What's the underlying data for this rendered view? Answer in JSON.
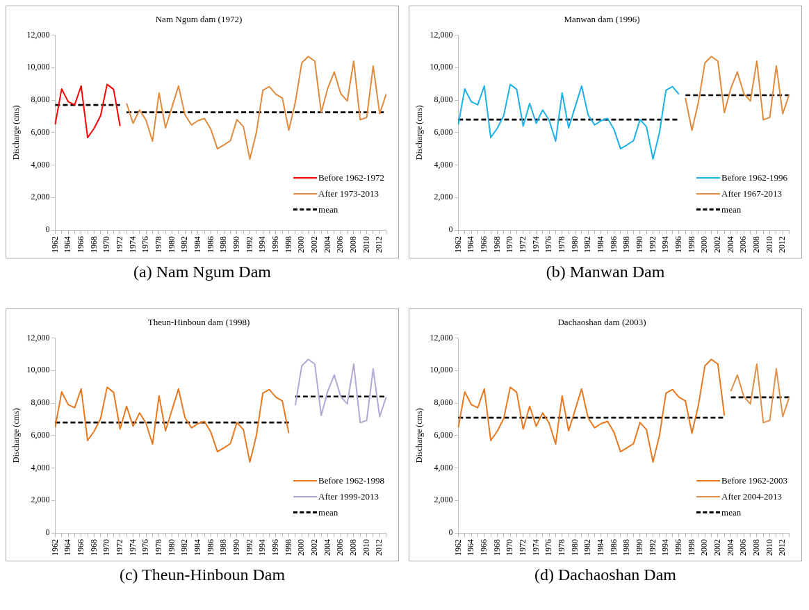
{
  "chart_data": [
    {
      "type": "line",
      "title": "Nam Ngum dam (1972)",
      "ylabel": "Discharge (cms)",
      "annotations": [
        "(a) Nam Ngum Dam"
      ],
      "legend": "bottom right",
      "grid": false,
      "marker": "none",
      "categories": [
        "1962",
        null,
        "1964",
        null,
        "1966",
        null,
        "1968",
        null,
        "1970",
        null,
        "1972",
        null,
        "1974",
        null,
        "1976",
        null,
        "1978",
        null,
        "1980",
        null,
        "1982",
        null,
        "1984",
        null,
        "1986",
        null,
        "1988",
        null,
        "1990",
        null,
        "1992",
        null,
        "1994",
        null,
        "1996",
        null,
        "1998",
        null,
        "2000",
        null,
        "2002",
        null,
        "2004",
        null,
        "2006",
        null,
        "2008",
        null,
        "2010",
        null,
        "2012",
        null
      ],
      "ylim": [
        0,
        12000
      ],
      "yticks": [
        {
          "value": 0,
          "label": "0"
        },
        {
          "value": 2000,
          "label": "2,000"
        },
        {
          "value": 4000,
          "label": "4,000"
        },
        {
          "value": 6000,
          "label": "6,000"
        },
        {
          "value": 8000,
          "label": "8,000"
        },
        {
          "value": 10000,
          "label": "10,000"
        },
        {
          "value": 12000,
          "label": "12,000"
        }
      ],
      "series": [
        {
          "name": "Before 1962-1972",
          "color": "#ff0000",
          "values": [
            6500,
            8690,
            7900,
            7710,
            8870,
            5690,
            6260,
            7040,
            8970,
            8660,
            6400,
            null,
            null,
            null,
            null,
            null,
            null,
            null,
            null,
            null,
            null,
            null,
            null,
            null,
            null,
            null,
            null,
            null,
            null,
            null,
            null,
            null,
            null,
            null,
            null,
            null,
            null,
            null,
            null,
            null,
            null,
            null,
            null,
            null,
            null,
            null,
            null,
            null,
            null,
            null,
            null,
            null
          ]
        },
        {
          "name": "After 1973-2013",
          "color": "#e08a3c",
          "values": [
            null,
            null,
            null,
            null,
            null,
            null,
            null,
            null,
            null,
            null,
            null,
            7800,
            6570,
            7390,
            6760,
            5470,
            8440,
            6290,
            7570,
            8870,
            7090,
            6470,
            6730,
            6870,
            6190,
            5000,
            5240,
            5500,
            6800,
            6360,
            4360,
            6000,
            8610,
            8830,
            8360,
            8130,
            6140,
            7860,
            10290,
            10690,
            10400,
            7230,
            8730,
            9730,
            8400,
            7940,
            10400,
            6790,
            6930,
            10110,
            7160,
            8360
          ]
        },
        {
          "name": "mean",
          "color": "#000000",
          "line_style": "dashed",
          "values": [
            7700,
            7700,
            7700,
            7700,
            7700,
            7700,
            7700,
            7700,
            7700,
            7700,
            7700,
            null,
            null,
            null,
            null,
            null,
            null,
            null,
            null,
            null,
            null,
            null,
            null,
            null,
            null,
            null,
            null,
            null,
            null,
            null,
            null,
            null,
            null,
            null,
            null,
            null,
            null,
            null,
            null,
            null,
            null,
            null,
            null,
            null,
            null,
            null,
            null,
            null,
            null,
            null,
            null,
            null
          ]
        },
        {
          "color": "#000000",
          "line_style": "dashed",
          "values": [
            null,
            null,
            null,
            null,
            null,
            null,
            null,
            null,
            null,
            null,
            null,
            7250,
            7250,
            7250,
            7250,
            7250,
            7250,
            7250,
            7250,
            7250,
            7250,
            7250,
            7250,
            7250,
            7250,
            7250,
            7250,
            7250,
            7250,
            7250,
            7250,
            7250,
            7250,
            7250,
            7250,
            7250,
            7250,
            7250,
            7250,
            7250,
            7250,
            7250,
            7250,
            7250,
            7250,
            7250,
            7250,
            7250,
            7250,
            7250,
            7250,
            7250
          ]
        }
      ]
    },
    {
      "type": "line",
      "title": "Manwan dam (1996)",
      "ylabel": "Discharge (cms)",
      "annotations": [
        "(b) Manwan Dam"
      ],
      "legend": "bottom right",
      "grid": false,
      "marker": "none",
      "categories": [
        "1962",
        null,
        "1964",
        null,
        "1966",
        null,
        "1968",
        null,
        "1970",
        null,
        "1972",
        null,
        "1974",
        null,
        "1976",
        null,
        "1978",
        null,
        "1980",
        null,
        "1982",
        null,
        "1984",
        null,
        "1986",
        null,
        "1988",
        null,
        "1990",
        null,
        "1992",
        null,
        "1994",
        null,
        "1996",
        null,
        "1998",
        null,
        "2000",
        null,
        "2002",
        null,
        "2004",
        null,
        "2006",
        null,
        "2008",
        null,
        "2010",
        null,
        "2012",
        null
      ],
      "ylim": [
        0,
        12000
      ],
      "yticks": [
        {
          "value": 0,
          "label": "0"
        },
        {
          "value": 2000,
          "label": "2,000"
        },
        {
          "value": 4000,
          "label": "4,000"
        },
        {
          "value": 6000,
          "label": "6,000"
        },
        {
          "value": 8000,
          "label": "8,000"
        },
        {
          "value": 10000,
          "label": "10,000"
        },
        {
          "value": 12000,
          "label": "12,000"
        }
      ],
      "series": [
        {
          "name": "Before 1962-1996",
          "color": "#1ab0e8",
          "values": [
            6500,
            8690,
            7900,
            7710,
            8870,
            5690,
            6260,
            7040,
            8970,
            8660,
            6400,
            7800,
            6570,
            7390,
            6760,
            5470,
            8440,
            6290,
            7570,
            8870,
            7090,
            6470,
            6730,
            6870,
            6190,
            5000,
            5240,
            5500,
            6800,
            6360,
            4360,
            6000,
            8610,
            8830,
            8360,
            null,
            null,
            null,
            null,
            null,
            null,
            null,
            null,
            null,
            null,
            null,
            null,
            null,
            null,
            null,
            null,
            null
          ]
        },
        {
          "name": "After 1967-2013",
          "color": "#e08a3c",
          "values": [
            null,
            null,
            null,
            null,
            null,
            null,
            null,
            null,
            null,
            null,
            null,
            null,
            null,
            null,
            null,
            null,
            null,
            null,
            null,
            null,
            null,
            null,
            null,
            null,
            null,
            null,
            null,
            null,
            null,
            null,
            null,
            null,
            null,
            null,
            null,
            8130,
            6140,
            7860,
            10290,
            10690,
            10400,
            7230,
            8730,
            9730,
            8400,
            7940,
            10400,
            6790,
            6930,
            10110,
            7160,
            8360
          ]
        },
        {
          "name": "mean",
          "color": "#000000",
          "line_style": "dashed",
          "values": [
            6800,
            6800,
            6800,
            6800,
            6800,
            6800,
            6800,
            6800,
            6800,
            6800,
            6800,
            6800,
            6800,
            6800,
            6800,
            6800,
            6800,
            6800,
            6800,
            6800,
            6800,
            6800,
            6800,
            6800,
            6800,
            6800,
            6800,
            6800,
            6800,
            6800,
            6800,
            6800,
            6800,
            6800,
            6800,
            null,
            null,
            null,
            null,
            null,
            null,
            null,
            null,
            null,
            null,
            null,
            null,
            null,
            null,
            null,
            null,
            null
          ]
        },
        {
          "color": "#000000",
          "line_style": "dashed",
          "values": [
            null,
            null,
            null,
            null,
            null,
            null,
            null,
            null,
            null,
            null,
            null,
            null,
            null,
            null,
            null,
            null,
            null,
            null,
            null,
            null,
            null,
            null,
            null,
            null,
            null,
            null,
            null,
            null,
            null,
            null,
            null,
            null,
            null,
            null,
            null,
            8300,
            8300,
            8300,
            8300,
            8300,
            8300,
            8300,
            8300,
            8300,
            8300,
            8300,
            8300,
            8300,
            8300,
            8300,
            8300,
            8300
          ]
        }
      ]
    },
    {
      "type": "line",
      "title": "Theun-Hinboun dam (1998)",
      "ylabel": "Discharge (cms)",
      "annotations": [
        "(c) Theun-Hinboun Dam"
      ],
      "legend": "bottom right",
      "grid": false,
      "marker": "none",
      "categories": [
        "1962",
        null,
        "1964",
        null,
        "1966",
        null,
        "1968",
        null,
        "1970",
        null,
        "1972",
        null,
        "1974",
        null,
        "1976",
        null,
        "1978",
        null,
        "1980",
        null,
        "1982",
        null,
        "1984",
        null,
        "1986",
        null,
        "1988",
        null,
        "1990",
        null,
        "1992",
        null,
        "1994",
        null,
        "1996",
        null,
        "1998",
        null,
        "2000",
        null,
        "2002",
        null,
        "2004",
        null,
        "2006",
        null,
        "2008",
        null,
        "2010",
        null,
        "2012",
        null
      ],
      "ylim": [
        0,
        12000
      ],
      "yticks": [
        {
          "value": 0,
          "label": "0"
        },
        {
          "value": 2000,
          "label": "2,000"
        },
        {
          "value": 4000,
          "label": "4,000"
        },
        {
          "value": 6000,
          "label": "6,000"
        },
        {
          "value": 8000,
          "label": "8,000"
        },
        {
          "value": 10000,
          "label": "10,000"
        },
        {
          "value": 12000,
          "label": "12,000"
        }
      ],
      "series": [
        {
          "name": "Before 1962-1998",
          "color": "#e8781e",
          "values": [
            6500,
            8690,
            7900,
            7710,
            8870,
            5690,
            6260,
            7040,
            8970,
            8660,
            6400,
            7800,
            6570,
            7390,
            6760,
            5470,
            8440,
            6290,
            7570,
            8870,
            7090,
            6470,
            6730,
            6870,
            6190,
            5000,
            5240,
            5500,
            6800,
            6360,
            4360,
            6000,
            8610,
            8830,
            8360,
            8130,
            6140,
            null,
            null,
            null,
            null,
            null,
            null,
            null,
            null,
            null,
            null,
            null,
            null,
            null,
            null,
            null
          ]
        },
        {
          "name": "After 1999-2013",
          "color": "#b4a7d6",
          "values": [
            null,
            null,
            null,
            null,
            null,
            null,
            null,
            null,
            null,
            null,
            null,
            null,
            null,
            null,
            null,
            null,
            null,
            null,
            null,
            null,
            null,
            null,
            null,
            null,
            null,
            null,
            null,
            null,
            null,
            null,
            null,
            null,
            null,
            null,
            null,
            null,
            null,
            7860,
            10290,
            10690,
            10400,
            7230,
            8730,
            9730,
            8400,
            7940,
            10400,
            6790,
            6930,
            10110,
            7160,
            8360
          ]
        },
        {
          "name": "mean",
          "color": "#000000",
          "line_style": "dashed",
          "values": [
            6800,
            6800,
            6800,
            6800,
            6800,
            6800,
            6800,
            6800,
            6800,
            6800,
            6800,
            6800,
            6800,
            6800,
            6800,
            6800,
            6800,
            6800,
            6800,
            6800,
            6800,
            6800,
            6800,
            6800,
            6800,
            6800,
            6800,
            6800,
            6800,
            6800,
            6800,
            6800,
            6800,
            6800,
            6800,
            6800,
            6800,
            null,
            null,
            null,
            null,
            null,
            null,
            null,
            null,
            null,
            null,
            null,
            null,
            null,
            null,
            null
          ]
        },
        {
          "color": "#000000",
          "line_style": "dashed",
          "values": [
            null,
            null,
            null,
            null,
            null,
            null,
            null,
            null,
            null,
            null,
            null,
            null,
            null,
            null,
            null,
            null,
            null,
            null,
            null,
            null,
            null,
            null,
            null,
            null,
            null,
            null,
            null,
            null,
            null,
            null,
            null,
            null,
            null,
            null,
            null,
            null,
            null,
            8400,
            8400,
            8400,
            8400,
            8400,
            8400,
            8400,
            8400,
            8400,
            8400,
            8400,
            8400,
            8400,
            8400,
            8400
          ]
        }
      ]
    },
    {
      "type": "line",
      "title": "Dachaoshan dam (2003)",
      "ylabel": "Discharge (cms)",
      "annotations": [
        "(d) Dachaoshan Dam"
      ],
      "legend": "bottom right",
      "grid": false,
      "marker": "none",
      "categories": [
        "1962",
        null,
        "1964",
        null,
        "1966",
        null,
        "1968",
        null,
        "1970",
        null,
        "1972",
        null,
        "1974",
        null,
        "1976",
        null,
        "1978",
        null,
        "1980",
        null,
        "1982",
        null,
        "1984",
        null,
        "1986",
        null,
        "1988",
        null,
        "1990",
        null,
        "1992",
        null,
        "1994",
        null,
        "1996",
        null,
        "1998",
        null,
        "2000",
        null,
        "2002",
        null,
        "2004",
        null,
        "2006",
        null,
        "2008",
        null,
        "2010",
        null,
        "2012",
        null
      ],
      "ylim": [
        0,
        12000
      ],
      "yticks": [
        {
          "value": 0,
          "label": "0"
        },
        {
          "value": 2000,
          "label": "2,000"
        },
        {
          "value": 4000,
          "label": "4,000"
        },
        {
          "value": 6000,
          "label": "6,000"
        },
        {
          "value": 8000,
          "label": "8,000"
        },
        {
          "value": 10000,
          "label": "10,000"
        },
        {
          "value": 12000,
          "label": "12,000"
        }
      ],
      "series": [
        {
          "name": "Before 1962-2003",
          "color": "#e8781e",
          "values": [
            6500,
            8690,
            7900,
            7710,
            8870,
            5690,
            6260,
            7040,
            8970,
            8660,
            6400,
            7800,
            6570,
            7390,
            6760,
            5470,
            8440,
            6290,
            7570,
            8870,
            7090,
            6470,
            6730,
            6870,
            6190,
            5000,
            5240,
            5500,
            6800,
            6360,
            4360,
            6000,
            8610,
            8830,
            8360,
            8130,
            6140,
            7860,
            10290,
            10690,
            10400,
            7230,
            null,
            null,
            null,
            null,
            null,
            null,
            null,
            null,
            null,
            null
          ]
        },
        {
          "name": "After 2004-2013",
          "color": "#e0904a",
          "values": [
            null,
            null,
            null,
            null,
            null,
            null,
            null,
            null,
            null,
            null,
            null,
            null,
            null,
            null,
            null,
            null,
            null,
            null,
            null,
            null,
            null,
            null,
            null,
            null,
            null,
            null,
            null,
            null,
            null,
            null,
            null,
            null,
            null,
            null,
            null,
            null,
            null,
            null,
            null,
            null,
            null,
            null,
            8730,
            9730,
            8400,
            7940,
            10400,
            6790,
            6930,
            10110,
            7160,
            8360
          ]
        },
        {
          "name": "mean",
          "color": "#000000",
          "line_style": "dashed",
          "values": [
            7100,
            7100,
            7100,
            7100,
            7100,
            7100,
            7100,
            7100,
            7100,
            7100,
            7100,
            7100,
            7100,
            7100,
            7100,
            7100,
            7100,
            7100,
            7100,
            7100,
            7100,
            7100,
            7100,
            7100,
            7100,
            7100,
            7100,
            7100,
            7100,
            7100,
            7100,
            7100,
            7100,
            7100,
            7100,
            7100,
            7100,
            7100,
            7100,
            7100,
            7100,
            7100,
            null,
            null,
            null,
            null,
            null,
            null,
            null,
            null,
            null,
            null
          ]
        },
        {
          "color": "#000000",
          "line_style": "dashed",
          "values": [
            null,
            null,
            null,
            null,
            null,
            null,
            null,
            null,
            null,
            null,
            null,
            null,
            null,
            null,
            null,
            null,
            null,
            null,
            null,
            null,
            null,
            null,
            null,
            null,
            null,
            null,
            null,
            null,
            null,
            null,
            null,
            null,
            null,
            null,
            null,
            null,
            null,
            null,
            null,
            null,
            null,
            null,
            8350,
            8350,
            8350,
            8350,
            8350,
            8350,
            8350,
            8350,
            8350,
            8350
          ]
        }
      ]
    }
  ]
}
